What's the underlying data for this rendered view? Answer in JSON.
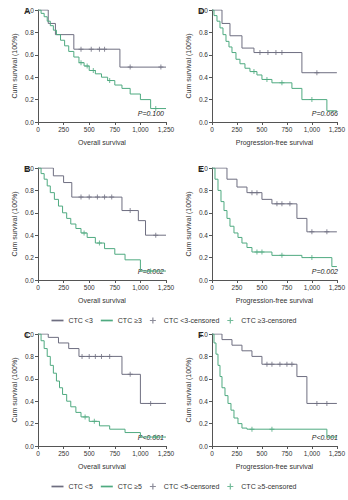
{
  "chart_data": [
    {
      "type": "line",
      "label": "A",
      "xlabel": "Overall survival",
      "ylabel": "Cum survival (100%)",
      "annotation": "P=0.100",
      "xlim": [
        0,
        1250
      ],
      "xticks": [
        0,
        250,
        500,
        750,
        {
          "value": 1000,
          "label": "1,000"
        },
        {
          "value": 1250,
          "label": "1,250"
        }
      ],
      "ylim": [
        0,
        1
      ],
      "yticks": [
        {
          "value": 0,
          "label": "0.0"
        },
        0.2,
        0.4,
        0.6,
        0.8,
        {
          "value": 1,
          "label": "1.0"
        }
      ],
      "grid": false,
      "series": [
        {
          "color": "#6e6e80",
          "line_style": "step",
          "x": [
            0,
            100,
            170,
            350,
            800,
            1250
          ],
          "values": [
            1,
            0.88,
            0.78,
            0.65,
            0.49,
            0.49
          ]
        },
        {
          "color": "#4faa80",
          "line_style": "step",
          "x": [
            0,
            30,
            60,
            90,
            120,
            150,
            180,
            220,
            260,
            300,
            350,
            400,
            450,
            500,
            560,
            620,
            680,
            750,
            820,
            900,
            1000,
            1100,
            1250
          ],
          "values": [
            1,
            0.97,
            0.94,
            0.9,
            0.86,
            0.82,
            0.78,
            0.73,
            0.68,
            0.63,
            0.58,
            0.53,
            0.5,
            0.46,
            0.43,
            0.4,
            0.37,
            0.33,
            0.3,
            0.25,
            0.2,
            0.12,
            0.12
          ]
        },
        {
          "type": "scatter",
          "marker": "cross",
          "color": "#6e6e80",
          "x": [
            420,
            520,
            600,
            650,
            900,
            1200
          ],
          "values": [
            0.65,
            0.65,
            0.65,
            0.65,
            0.49,
            0.49
          ]
        },
        {
          "type": "scatter",
          "marker": "cross",
          "color": "#4faa80",
          "x": [
            420,
            480,
            540,
            700,
            1150
          ],
          "values": [
            0.53,
            0.5,
            0.46,
            0.37,
            0.12
          ]
        }
      ]
    },
    {
      "type": "line",
      "label": "B",
      "xlabel": "Overall survival",
      "ylabel": "Cum survival (100%)",
      "annotation": "P=0.002",
      "legend": "bottom",
      "xlim": [
        0,
        1250
      ],
      "xticks": [
        0,
        250,
        500,
        750,
        {
          "value": 1000,
          "label": "1,000"
        },
        {
          "value": 1250,
          "label": "1,250"
        }
      ],
      "ylim": [
        0,
        1
      ],
      "yticks": [
        {
          "value": 0,
          "label": "0.0"
        },
        0.2,
        0.4,
        0.6,
        0.8,
        {
          "value": 1,
          "label": "1.0"
        }
      ],
      "grid": false,
      "series": [
        {
          "name": "CTC <3",
          "color": "#6e6e80",
          "line_style": "step",
          "x": [
            0,
            150,
            250,
            330,
            820,
            980,
            1050,
            1250
          ],
          "values": [
            1,
            0.93,
            0.87,
            0.74,
            0.62,
            0.53,
            0.4,
            0.4
          ]
        },
        {
          "name": "CTC ≥3",
          "color": "#4faa80",
          "line_style": "step",
          "x": [
            0,
            30,
            60,
            90,
            120,
            160,
            200,
            240,
            280,
            320,
            370,
            420,
            480,
            560,
            650,
            750,
            850,
            1000,
            1250
          ],
          "values": [
            1,
            0.95,
            0.9,
            0.84,
            0.78,
            0.72,
            0.66,
            0.6,
            0.55,
            0.5,
            0.46,
            0.42,
            0.38,
            0.33,
            0.28,
            0.23,
            0.18,
            0.08,
            0.08
          ]
        },
        {
          "name": "CTC <3-censored",
          "type": "scatter",
          "marker": "cross",
          "color": "#6e6e80",
          "x": [
            420,
            500,
            580,
            650,
            720,
            900,
            1150
          ],
          "values": [
            0.74,
            0.74,
            0.74,
            0.74,
            0.74,
            0.62,
            0.4
          ]
        },
        {
          "name": "CTC ≥3-censored",
          "type": "scatter",
          "marker": "cross",
          "color": "#4faa80",
          "x": [
            450,
            600,
            1100
          ],
          "values": [
            0.42,
            0.33,
            0.08
          ]
        }
      ]
    },
    {
      "type": "line",
      "label": "C",
      "xlabel": "Overall survival",
      "ylabel": "Cum survival (100%)",
      "annotation": "P<0.001",
      "legend": "bottom",
      "xlim": [
        0,
        1250
      ],
      "xticks": [
        0,
        250,
        500,
        750,
        {
          "value": 1000,
          "label": "1,000"
        },
        {
          "value": 1250,
          "label": "1,250"
        }
      ],
      "ylim": [
        0,
        1
      ],
      "yticks": [
        {
          "value": 0,
          "label": "0.0"
        },
        0.2,
        0.4,
        0.6,
        0.8,
        {
          "value": 1,
          "label": "1.0"
        }
      ],
      "grid": false,
      "series": [
        {
          "name": "CTC <5",
          "color": "#6e6e80",
          "line_style": "step",
          "x": [
            0,
            100,
            200,
            300,
            400,
            820,
            1000,
            1250
          ],
          "values": [
            1,
            0.97,
            0.92,
            0.87,
            0.8,
            0.64,
            0.38,
            0.38
          ]
        },
        {
          "name": "CTC ≥5",
          "color": "#4faa80",
          "line_style": "step",
          "x": [
            0,
            30,
            60,
            90,
            120,
            150,
            180,
            210,
            240,
            280,
            320,
            370,
            420,
            500,
            600,
            700,
            850,
            1000,
            1250
          ],
          "values": [
            1,
            0.94,
            0.87,
            0.8,
            0.72,
            0.65,
            0.58,
            0.52,
            0.46,
            0.4,
            0.35,
            0.3,
            0.26,
            0.22,
            0.18,
            0.15,
            0.12,
            0.08,
            0.08
          ]
        },
        {
          "name": "CTC <5-censored",
          "type": "scatter",
          "marker": "cross",
          "color": "#6e6e80",
          "x": [
            430,
            500,
            560,
            620,
            700,
            900,
            1100
          ],
          "values": [
            0.8,
            0.8,
            0.8,
            0.8,
            0.8,
            0.64,
            0.38
          ]
        },
        {
          "name": "CTC ≥5-censored",
          "type": "scatter",
          "marker": "cross",
          "color": "#4faa80",
          "x": [
            460,
            550,
            1150
          ],
          "values": [
            0.26,
            0.22,
            0.08
          ]
        }
      ]
    },
    {
      "type": "line",
      "label": "D",
      "xlabel": "Progression-free survival",
      "ylabel": "Cum survival (100%)",
      "annotation": "P=0.066",
      "xlim": [
        0,
        1250
      ],
      "xticks": [
        0,
        250,
        500,
        750,
        {
          "value": 1000,
          "label": "1,000"
        },
        {
          "value": 1250,
          "label": "1,250"
        }
      ],
      "ylim": [
        0,
        1
      ],
      "yticks": [
        {
          "value": 0,
          "label": "0.0"
        },
        0.2,
        0.4,
        0.6,
        0.8,
        {
          "value": 1,
          "label": "1.0"
        }
      ],
      "grid": false,
      "series": [
        {
          "color": "#6e6e80",
          "line_style": "step",
          "x": [
            0,
            100,
            180,
            300,
            420,
            900,
            1250
          ],
          "values": [
            1,
            0.88,
            0.77,
            0.66,
            0.62,
            0.44,
            0.44
          ]
        },
        {
          "color": "#4faa80",
          "line_style": "step",
          "x": [
            0,
            20,
            50,
            80,
            110,
            140,
            170,
            200,
            240,
            280,
            330,
            380,
            450,
            500,
            600,
            800,
            900,
            1150,
            1250
          ],
          "values": [
            1,
            0.95,
            0.9,
            0.84,
            0.78,
            0.72,
            0.67,
            0.62,
            0.56,
            0.52,
            0.48,
            0.45,
            0.42,
            0.38,
            0.35,
            0.3,
            0.2,
            0.1,
            0.1
          ]
        },
        {
          "type": "scatter",
          "marker": "cross",
          "color": "#6e6e80",
          "x": [
            480,
            560,
            640,
            700,
            1050
          ],
          "values": [
            0.62,
            0.62,
            0.62,
            0.62,
            0.44
          ]
        },
        {
          "type": "scatter",
          "marker": "cross",
          "color": "#4faa80",
          "x": [
            420,
            550,
            700,
            1000
          ],
          "values": [
            0.45,
            0.38,
            0.35,
            0.2
          ]
        }
      ]
    },
    {
      "type": "line",
      "label": "E",
      "xlabel": "Progression-free survival",
      "ylabel": "Cum survival (100%)",
      "annotation": "P=0.002",
      "xlim": [
        0,
        1250
      ],
      "xticks": [
        0,
        250,
        500,
        750,
        {
          "value": 1000,
          "label": "1,000"
        },
        {
          "value": 1250,
          "label": "1,250"
        }
      ],
      "ylim": [
        0,
        1
      ],
      "yticks": [
        {
          "value": 0,
          "label": "0.0"
        },
        0.2,
        0.4,
        0.6,
        0.8,
        {
          "value": 1,
          "label": "1.0"
        }
      ],
      "grid": false,
      "series": [
        {
          "color": "#6e6e80",
          "line_style": "step",
          "x": [
            0,
            150,
            250,
            350,
            500,
            600,
            850,
            950,
            1250
          ],
          "values": [
            1,
            0.9,
            0.83,
            0.78,
            0.72,
            0.68,
            0.55,
            0.43,
            0.43
          ]
        },
        {
          "color": "#4faa80",
          "line_style": "step",
          "x": [
            0,
            30,
            60,
            90,
            120,
            150,
            180,
            220,
            260,
            300,
            350,
            400,
            600,
            900,
            1200,
            1250
          ],
          "values": [
            1,
            0.9,
            0.8,
            0.7,
            0.62,
            0.55,
            0.48,
            0.42,
            0.38,
            0.33,
            0.29,
            0.25,
            0.22,
            0.2,
            0.12,
            0.12
          ]
        },
        {
          "type": "scatter",
          "marker": "cross",
          "color": "#6e6e80",
          "x": [
            400,
            450,
            650,
            700,
            780,
            1000,
            1150
          ],
          "values": [
            0.78,
            0.78,
            0.68,
            0.68,
            0.68,
            0.43,
            0.43
          ]
        },
        {
          "type": "scatter",
          "marker": "cross",
          "color": "#4faa80",
          "x": [
            450,
            500,
            700,
            1000
          ],
          "values": [
            0.25,
            0.25,
            0.22,
            0.2
          ]
        }
      ]
    },
    {
      "type": "line",
      "label": "F",
      "xlabel": "Progression-free survival",
      "ylabel": "Cum survival (100%)",
      "annotation": "P<0.001",
      "xlim": [
        0,
        1250
      ],
      "xticks": [
        0,
        250,
        500,
        750,
        {
          "value": 1000,
          "label": "1,000"
        },
        {
          "value": 1250,
          "label": "1,250"
        }
      ],
      "ylim": [
        0,
        1
      ],
      "yticks": [
        {
          "value": 0,
          "label": "0.0"
        },
        0.2,
        0.4,
        0.6,
        0.8,
        {
          "value": 1,
          "label": "1.0"
        }
      ],
      "grid": false,
      "series": [
        {
          "color": "#6e6e80",
          "line_style": "step",
          "x": [
            0,
            100,
            200,
            300,
            400,
            500,
            850,
            950,
            1250
          ],
          "values": [
            1,
            0.95,
            0.9,
            0.85,
            0.8,
            0.73,
            0.62,
            0.38,
            0.38
          ]
        },
        {
          "color": "#4faa80",
          "line_style": "step",
          "x": [
            0,
            20,
            40,
            60,
            80,
            100,
            130,
            160,
            190,
            220,
            260,
            300,
            350,
            1150,
            1250
          ],
          "values": [
            1,
            0.92,
            0.82,
            0.72,
            0.62,
            0.52,
            0.45,
            0.38,
            0.32,
            0.25,
            0.2,
            0.16,
            0.15,
            0.08,
            0.08
          ]
        },
        {
          "type": "scatter",
          "marker": "cross",
          "color": "#6e6e80",
          "x": [
            550,
            600,
            680,
            750,
            800,
            1050,
            1150
          ],
          "values": [
            0.73,
            0.73,
            0.73,
            0.73,
            0.73,
            0.38,
            0.38
          ]
        },
        {
          "type": "scatter",
          "marker": "cross",
          "color": "#4faa80",
          "x": [
            400,
            600
          ],
          "values": [
            0.15,
            0.15
          ]
        }
      ]
    }
  ]
}
